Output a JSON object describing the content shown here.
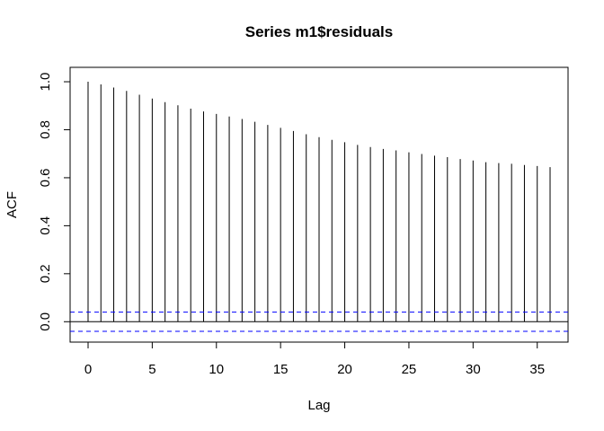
{
  "chart_data": {
    "type": "bar",
    "title": "Series  m1$residuals",
    "xlabel": "Lag",
    "ylabel": "ACF",
    "xlim": [
      -1.4,
      37.4
    ],
    "ylim": [
      -0.085,
      1.06
    ],
    "x_ticks": [
      0,
      5,
      10,
      15,
      20,
      25,
      30,
      35
    ],
    "y_ticks": [
      0.0,
      0.2,
      0.4,
      0.6,
      0.8,
      1.0
    ],
    "x_tick_labels": [
      "0",
      "5",
      "10",
      "15",
      "20",
      "25",
      "30",
      "35"
    ],
    "y_tick_labels": [
      "0.0",
      "0.2",
      "0.4",
      "0.6",
      "0.8",
      "1.0"
    ],
    "lags": [
      0,
      1,
      2,
      3,
      4,
      5,
      6,
      7,
      8,
      9,
      10,
      11,
      12,
      13,
      14,
      15,
      16,
      17,
      18,
      19,
      20,
      21,
      22,
      23,
      24,
      25,
      26,
      27,
      28,
      29,
      30,
      31,
      32,
      33,
      34,
      35,
      36
    ],
    "acf": [
      1.0,
      0.989,
      0.976,
      0.962,
      0.946,
      0.93,
      0.915,
      0.902,
      0.888,
      0.876,
      0.866,
      0.855,
      0.845,
      0.833,
      0.82,
      0.808,
      0.795,
      0.781,
      0.769,
      0.758,
      0.748,
      0.737,
      0.728,
      0.72,
      0.714,
      0.706,
      0.699,
      0.692,
      0.686,
      0.678,
      0.672,
      0.665,
      0.661,
      0.658,
      0.653,
      0.649,
      0.644
    ],
    "confidence_bound": 0.04,
    "colors": {
      "bars": "#000000",
      "zero_line": "#000000",
      "confidence": "#0000ff"
    },
    "grid": false,
    "legend": "none"
  }
}
